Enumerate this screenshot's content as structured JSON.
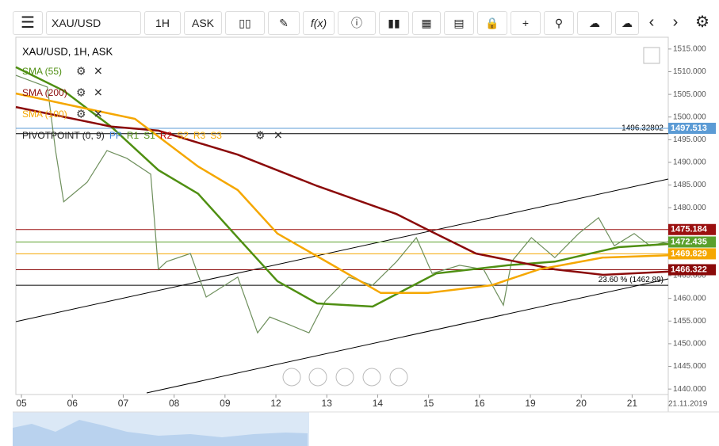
{
  "toolbar": {
    "symbol": "XAU/USD",
    "timeframe": "1H",
    "side": "ASK"
  },
  "chart_data": {
    "type": "line",
    "title": "XAU/USD, 1H, ASK",
    "date_label": "21.11.2019",
    "xlim": [
      -0.11,
      12.71
    ],
    "xticks": [
      {
        "value": 0,
        "label": "05"
      },
      {
        "value": 1,
        "label": "06"
      },
      {
        "value": 2,
        "label": "07"
      },
      {
        "value": 3,
        "label": "08"
      },
      {
        "value": 4,
        "label": "09"
      },
      {
        "value": 5,
        "label": "12"
      },
      {
        "value": 6,
        "label": "13"
      },
      {
        "value": 7,
        "label": "14"
      },
      {
        "value": 8,
        "label": "15"
      },
      {
        "value": 9,
        "label": "16"
      },
      {
        "value": 10,
        "label": "19"
      },
      {
        "value": 11,
        "label": "20"
      },
      {
        "value": 12,
        "label": "21"
      }
    ],
    "ylim": [
      1438.8,
      1517.6
    ],
    "yticks": [
      {
        "value": 1440,
        "label": "1440.000"
      },
      {
        "value": 1445,
        "label": "1445.000"
      },
      {
        "value": 1450,
        "label": "1450.000"
      },
      {
        "value": 1455,
        "label": "1455.000"
      },
      {
        "value": 1460,
        "label": "1460.000"
      },
      {
        "value": 1465,
        "label": "1465.000"
      },
      {
        "value": 1470,
        "label": "1470.000"
      },
      {
        "value": 1475,
        "label": "1475.000"
      },
      {
        "value": 1480,
        "label": "1480.000"
      },
      {
        "value": 1485,
        "label": "1485.000"
      },
      {
        "value": 1490,
        "label": "1490.000"
      },
      {
        "value": 1495,
        "label": "1495.000"
      },
      {
        "value": 1500,
        "label": "1500.000"
      },
      {
        "value": 1505,
        "label": "1505.000"
      },
      {
        "value": 1510,
        "label": "1510.000"
      },
      {
        "value": 1515,
        "label": "1515.000"
      }
    ],
    "series": [
      {
        "color": "#6e8f5c",
        "x": [
          -0.11,
          0.51,
          0.67,
          0.83,
          1.29,
          1.68,
          2.07,
          2.54,
          2.69,
          2.85,
          3.32,
          3.63,
          4.25,
          4.64,
          4.88,
          5.26,
          5.65,
          5.97,
          6.43,
          6.9,
          7.37,
          7.76,
          8.07,
          8.61,
          9.08,
          9.47,
          9.63,
          10.02,
          10.48,
          10.95,
          11.34,
          11.65,
          12.04,
          12.35,
          12.71
        ],
        "values": [
          1509.2,
          1506.6,
          1492.6,
          1481.3,
          1485.6,
          1492.6,
          1490.9,
          1487.4,
          1466.4,
          1468.1,
          1469.9,
          1460.3,
          1464.7,
          1452.4,
          1455.9,
          1454.2,
          1452.4,
          1459.4,
          1464.7,
          1462.9,
          1468.1,
          1473.4,
          1465.5,
          1467.3,
          1466.4,
          1458.5,
          1468.1,
          1473.4,
          1469.0,
          1474.3,
          1477.8,
          1471.6,
          1474.3,
          1471.6,
          1472.5
        ]
      },
      {
        "name": "SMA (55)",
        "color": "#4f8f12",
        "x": [
          -0.11,
          0.83,
          1.76,
          2.69,
          3.47,
          4.25,
          5.03,
          5.81,
          6.9,
          8.15,
          9.55,
          10.48,
          11.73,
          12.71
        ],
        "values": [
          1511.0,
          1505.8,
          1497.9,
          1488.3,
          1483.1,
          1473.4,
          1463.8,
          1458.9,
          1458.2,
          1465.5,
          1467.3,
          1468.1,
          1471.3,
          1472.0
        ]
      },
      {
        "name": "SMA (200)",
        "color": "#8b0a0a",
        "x": [
          -0.11,
          1.76,
          2.69,
          4.25,
          5.81,
          7.37,
          7.99,
          8.93,
          10.48,
          11.42,
          12.71
        ],
        "values": [
          1502.2,
          1497.9,
          1497.0,
          1491.7,
          1484.8,
          1478.6,
          1475.1,
          1469.9,
          1466.4,
          1465.2,
          1465.9
        ]
      },
      {
        "name": "SMA (100)",
        "color": "#f5a700",
        "x": [
          -0.11,
          1.13,
          2.23,
          3.47,
          4.25,
          5.03,
          6.12,
          7.06,
          7.99,
          9.24,
          10.17,
          11.42,
          12.71
        ],
        "values": [
          1505.2,
          1502.2,
          1499.6,
          1489.1,
          1483.9,
          1474.3,
          1467.3,
          1461.2,
          1461.2,
          1462.9,
          1466.4,
          1469.0,
          1469.5
        ]
      }
    ],
    "pivot": {
      "name": "PIVOTPOINT (0, 9)",
      "items": [
        {
          "text": "PP",
          "color": "#3a7fd5"
        },
        {
          "text": "R1",
          "color": "#4f8f12"
        },
        {
          "text": "S1",
          "color": "#4f8f12"
        },
        {
          "text": "R2",
          "color": "#c00000"
        },
        {
          "text": "S2",
          "color": "#f5a700"
        },
        {
          "text": "R3",
          "color": "#f5a700"
        },
        {
          "text": "S3",
          "color": "#f5a700"
        }
      ]
    },
    "levels": [
      {
        "value": 1497.513,
        "color": "#5b9bd5"
      },
      {
        "value": 1475.184,
        "color": "#9b1010"
      },
      {
        "value": 1472.435,
        "color": "#5aa02c"
      },
      {
        "value": 1469.829,
        "color": "#f5a700"
      },
      {
        "value": 1466.322,
        "color": "#8b0a0a"
      }
    ],
    "annotations": [
      {
        "value": 1496.32802,
        "text": "1496.32802"
      },
      {
        "value": 1462.89,
        "text": "23.60 % (1462.89)"
      }
    ]
  }
}
